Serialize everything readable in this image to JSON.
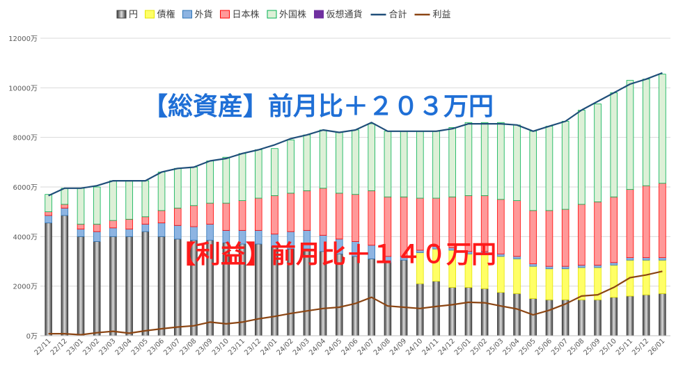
{
  "chart_data": {
    "type": "bar",
    "stacked": true,
    "y_unit": "万",
    "ylim": [
      0,
      12000
    ],
    "y_ticks": [
      "0万",
      "2000万",
      "4000万",
      "6000万",
      "8000万",
      "10000万",
      "12000万"
    ],
    "grid": true,
    "legend_position": "top",
    "categories": [
      "22/11",
      "22/12",
      "23/01",
      "23/02",
      "23/03",
      "23/04",
      "23/05",
      "23/06",
      "23/07",
      "23/08",
      "23/09",
      "23/10",
      "23/11",
      "23/12",
      "24/01",
      "24/02",
      "24/03",
      "24/04",
      "24/05",
      "24/06",
      "24/07",
      "24/08",
      "24/09",
      "24/10",
      "24/11",
      "24/12",
      "25/01",
      "25/02",
      "25/03",
      "25/04",
      "25/05",
      "25/06",
      "25/07",
      "25/08",
      "25/09",
      "25/10",
      "25/11",
      "25/12",
      "26/01"
    ],
    "series": [
      {
        "name": "円",
        "kind": "bar",
        "color": "#8c8c8c",
        "values": [
          4550,
          4850,
          4000,
          3800,
          4000,
          4000,
          4200,
          4000,
          3900,
          3850,
          3850,
          3750,
          3700,
          3700,
          3600,
          3500,
          3500,
          3400,
          3300,
          3200,
          3100,
          2950,
          3050,
          2100,
          2200,
          1950,
          1950,
          1900,
          1750,
          1700,
          1500,
          1450,
          1450,
          1450,
          1450,
          1550,
          1600,
          1650,
          1700
        ]
      },
      {
        "name": "債権",
        "kind": "bar",
        "color": "#ffff66",
        "values": [
          0,
          0,
          0,
          0,
          0,
          0,
          0,
          0,
          0,
          0,
          0,
          0,
          0,
          0,
          0,
          0,
          0,
          0,
          0,
          0,
          0,
          0,
          0,
          1250,
          1300,
          1500,
          1350,
          1400,
          1450,
          1400,
          1300,
          1250,
          1250,
          1300,
          1300,
          1300,
          1450,
          1400,
          1350
        ]
      },
      {
        "name": "外貨",
        "kind": "bar",
        "color": "#8db4e2",
        "values": [
          300,
          300,
          300,
          400,
          350,
          300,
          300,
          550,
          550,
          550,
          650,
          500,
          550,
          550,
          500,
          700,
          750,
          650,
          600,
          600,
          550,
          250,
          150,
          100,
          100,
          100,
          100,
          100,
          100,
          100,
          100,
          100,
          100,
          100,
          100,
          100,
          100,
          100,
          100
        ]
      },
      {
        "name": "日本株",
        "kind": "bar",
        "color": "#ff9999",
        "values": [
          150,
          150,
          200,
          300,
          300,
          400,
          300,
          500,
          700,
          850,
          850,
          1100,
          1200,
          1300,
          1550,
          1550,
          1600,
          1900,
          1850,
          1900,
          2200,
          2400,
          2400,
          2100,
          1950,
          2050,
          2250,
          2250,
          2200,
          2250,
          2150,
          2250,
          2300,
          2450,
          2550,
          2650,
          2750,
          2900,
          3000
        ]
      },
      {
        "name": "外国株",
        "kind": "bar",
        "color": "#ddf0d7",
        "values": [
          700,
          650,
          1450,
          1500,
          1600,
          1550,
          1450,
          1550,
          1600,
          1550,
          1700,
          1850,
          1900,
          1950,
          1900,
          2150,
          2250,
          2350,
          2450,
          2600,
          2700,
          2650,
          2650,
          2700,
          2700,
          2800,
          2950,
          2950,
          3100,
          3050,
          3200,
          3400,
          3550,
          3800,
          3950,
          4200,
          4400,
          4300,
          4400
        ]
      },
      {
        "name": "仮想通貨",
        "kind": "bar",
        "color": "#7030a0",
        "values": [
          0,
          0,
          0,
          0,
          0,
          0,
          0,
          0,
          0,
          0,
          0,
          0,
          0,
          0,
          0,
          0,
          0,
          0,
          0,
          0,
          0,
          0,
          0,
          0,
          0,
          0,
          0,
          0,
          0,
          0,
          0,
          0,
          0,
          0,
          0,
          0,
          0,
          0,
          0
        ]
      },
      {
        "name": "合計",
        "kind": "line",
        "color": "#1f4e79",
        "values": [
          5650,
          5950,
          5950,
          6050,
          6250,
          6250,
          6250,
          6600,
          6750,
          6800,
          7050,
          7150,
          7350,
          7500,
          7700,
          7950,
          8100,
          8300,
          8200,
          8300,
          8600,
          8250,
          8250,
          8250,
          8250,
          8350,
          8550,
          8550,
          8550,
          8500,
          8250,
          8450,
          8650,
          9100,
          9450,
          9800,
          10150,
          10350,
          10600
        ]
      },
      {
        "name": "利益",
        "kind": "line",
        "color": "#8b4513",
        "values": [
          80,
          80,
          40,
          120,
          180,
          100,
          200,
          280,
          350,
          400,
          550,
          480,
          550,
          680,
          780,
          900,
          1000,
          1100,
          1150,
          1300,
          1550,
          1200,
          1150,
          1100,
          1180,
          1250,
          1350,
          1330,
          1200,
          1080,
          840,
          1030,
          1280,
          1600,
          1650,
          1950,
          2340,
          2450,
          2600
        ]
      }
    ]
  },
  "legend": [
    {
      "label": "円",
      "swatch": "bar",
      "color": "#8c8c8c",
      "border": "#404040"
    },
    {
      "label": "債権",
      "swatch": "bar",
      "color": "#ffff66",
      "border": "#e5e500"
    },
    {
      "label": "外貨",
      "swatch": "bar",
      "color": "#8db4e2",
      "border": "#2e75b6"
    },
    {
      "label": "日本株",
      "swatch": "bar",
      "color": "#ff9999",
      "border": "#ff0000"
    },
    {
      "label": "外国株",
      "swatch": "bar",
      "color": "#ddf0d7",
      "border": "#00b050"
    },
    {
      "label": "仮想通貨",
      "swatch": "bar",
      "color": "#7030a0",
      "border": "#7030a0"
    },
    {
      "label": "合計",
      "swatch": "line",
      "color": "#1f4e79"
    },
    {
      "label": "利益",
      "swatch": "line",
      "color": "#8b4513"
    }
  ],
  "annotations": {
    "total_assets": "【総資産】前月比＋２０３万円",
    "profit": "【利益】前月比＋１４０万円"
  }
}
